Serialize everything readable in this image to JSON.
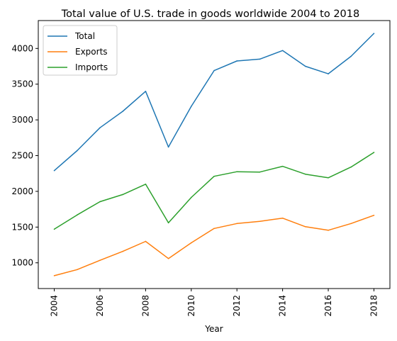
{
  "chart_data": {
    "type": "line",
    "title": "Total value of U.S. trade in goods worldwide 2004 to 2018",
    "xlabel": "Year",
    "ylabel": "",
    "x": [
      2004,
      2005,
      2006,
      2007,
      2008,
      2009,
      2010,
      2011,
      2012,
      2013,
      2014,
      2015,
      2016,
      2017,
      2018
    ],
    "series": [
      {
        "name": "Total",
        "color": "#1f77b4",
        "values": [
          2290,
          2570,
          2890,
          3120,
          3400,
          2620,
          3190,
          3690,
          3825,
          3850,
          3970,
          3750,
          3645,
          3890,
          4210
        ]
      },
      {
        "name": "Exports",
        "color": "#ff7f0e",
        "values": [
          820,
          905,
          1035,
          1160,
          1300,
          1060,
          1280,
          1480,
          1550,
          1580,
          1625,
          1505,
          1455,
          1550,
          1665
        ]
      },
      {
        "name": "Imports",
        "color": "#2ca02c",
        "values": [
          1470,
          1670,
          1855,
          1955,
          2100,
          1560,
          1915,
          2210,
          2275,
          2270,
          2350,
          2240,
          2190,
          2340,
          2545
        ]
      }
    ],
    "xticks": [
      2004,
      2006,
      2008,
      2010,
      2012,
      2014,
      2016,
      2018
    ],
    "yticks": [
      1000,
      1500,
      2000,
      2500,
      3000,
      3500,
      4000
    ],
    "xlim": [
      2003.3,
      2018.7
    ],
    "ylim": [
      640,
      4390
    ],
    "legend": "upper-left",
    "grid": false
  }
}
